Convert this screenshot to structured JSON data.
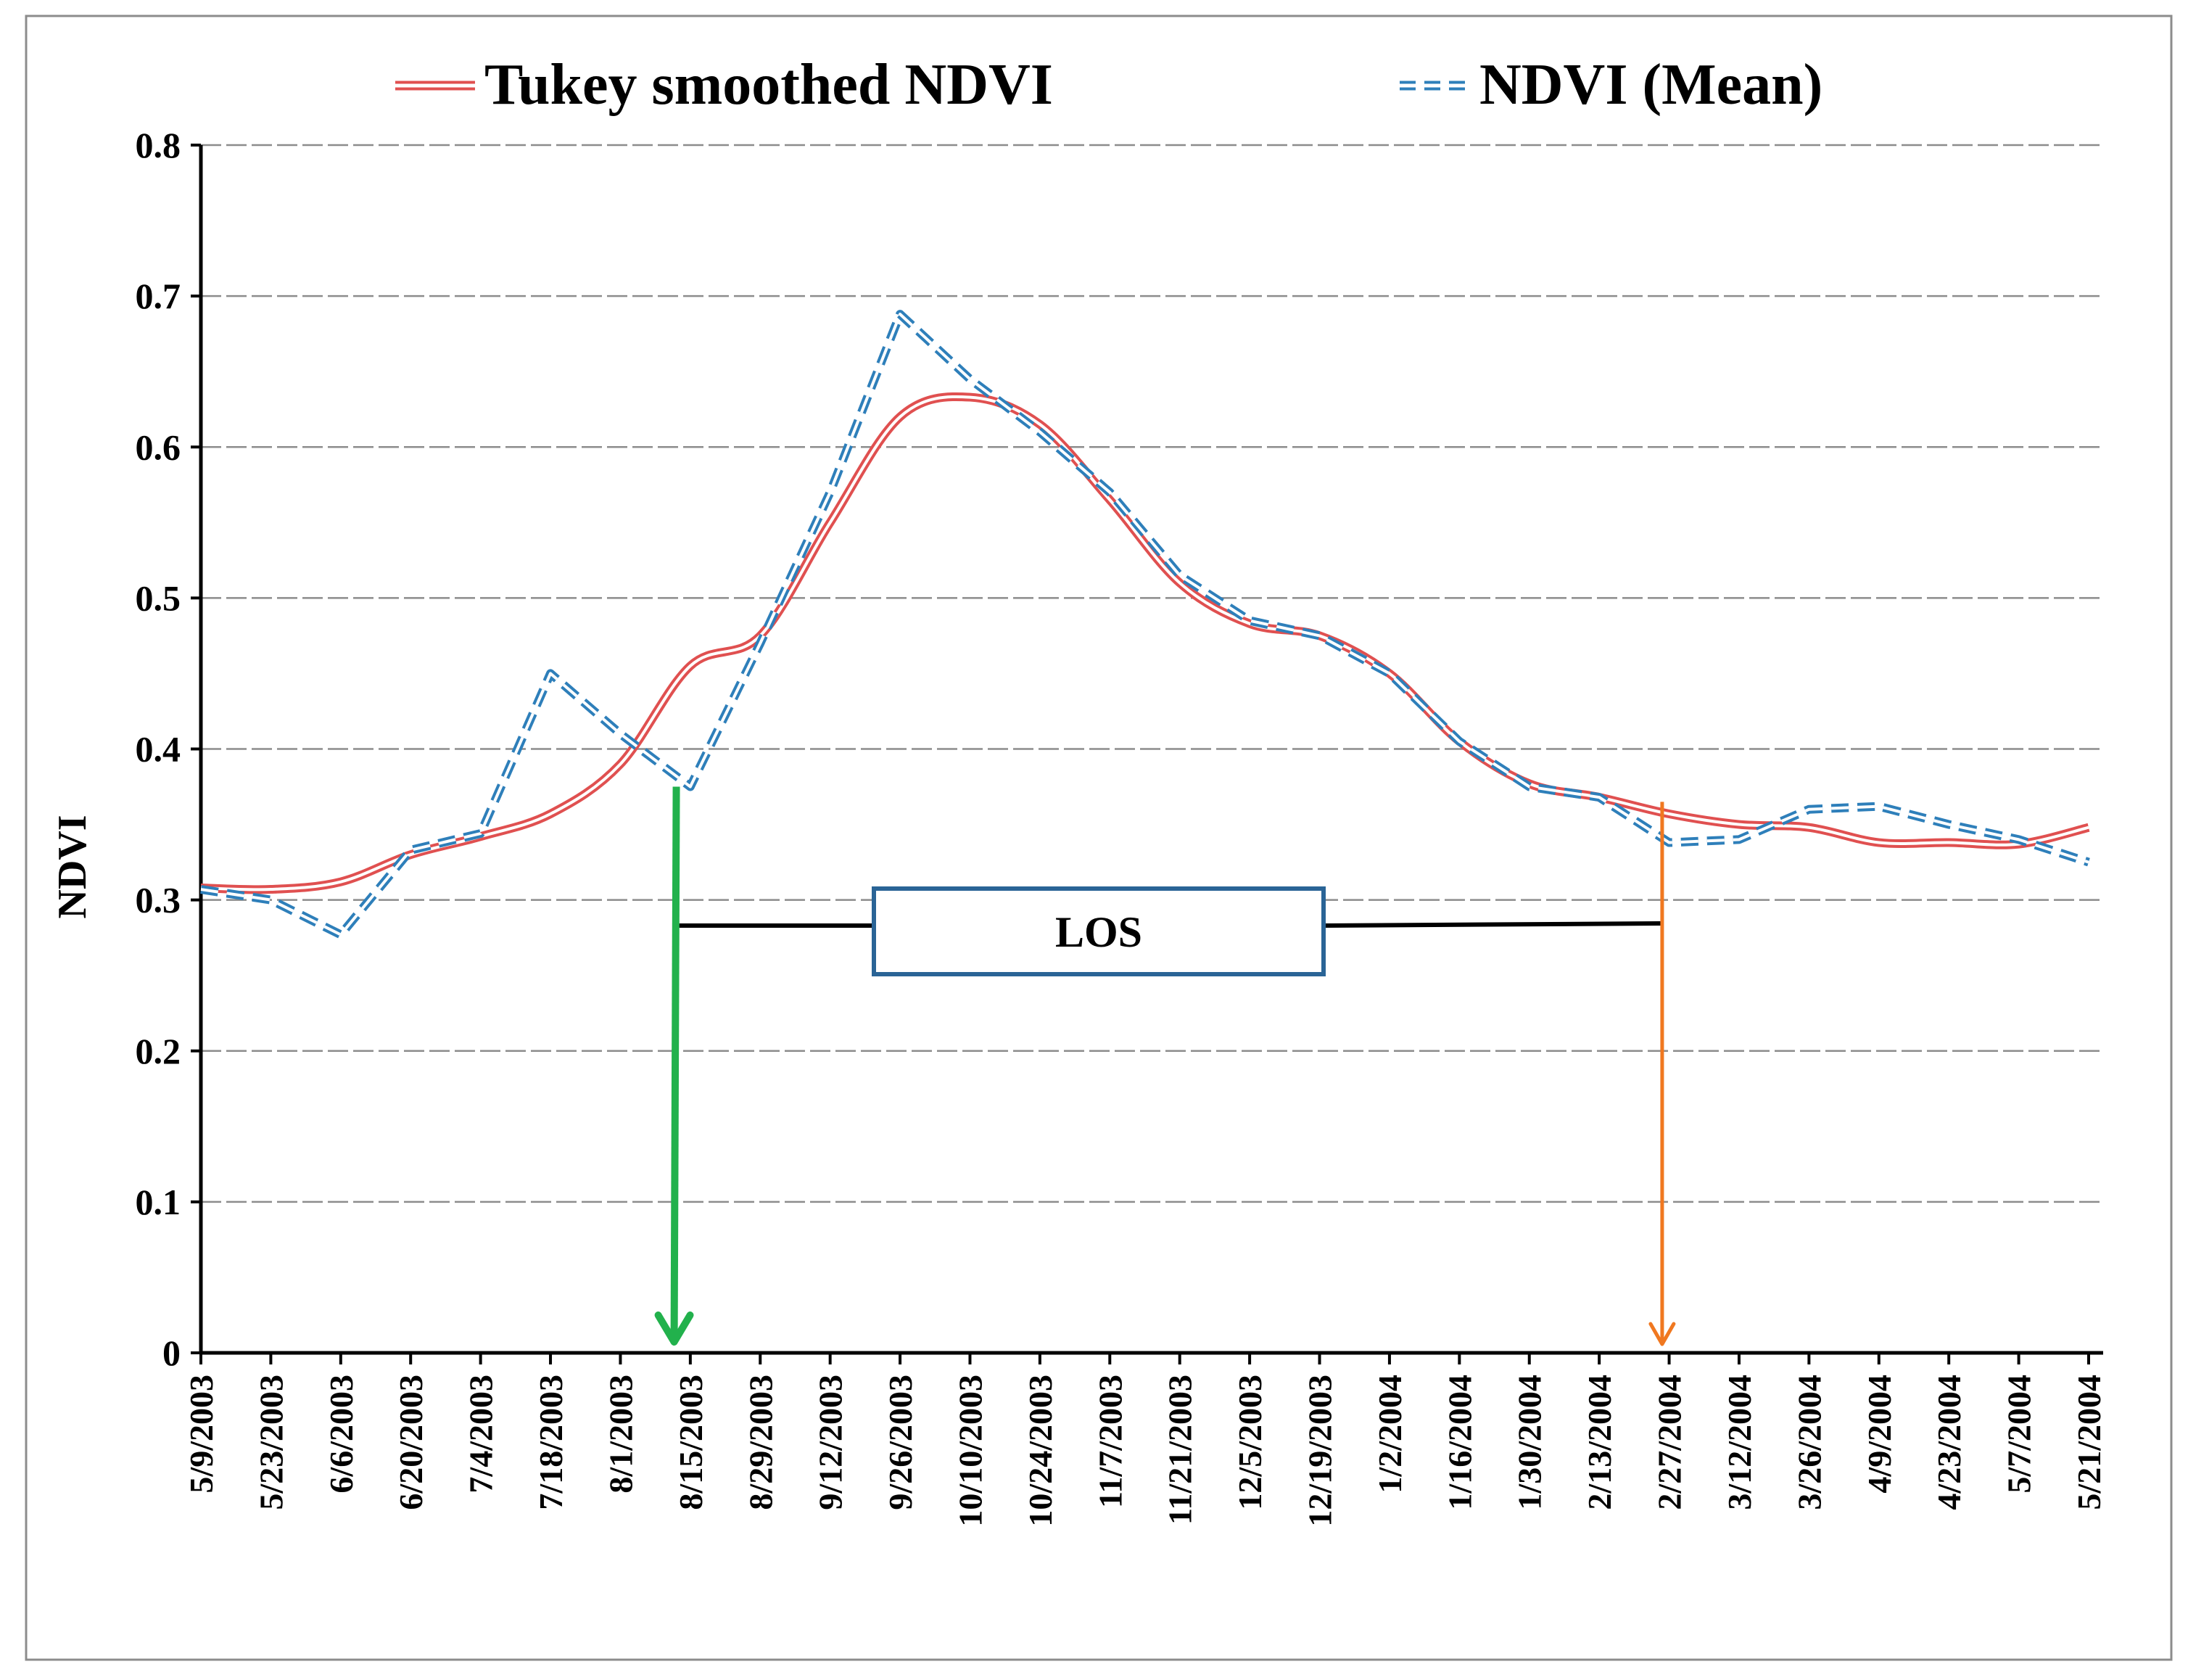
{
  "chart_data": {
    "type": "line",
    "title": "",
    "xlabel": "",
    "ylabel": "NDVI",
    "ylim": [
      0,
      0.8
    ],
    "yticks": [
      "0",
      "0.1",
      "0.2",
      "0.3",
      "0.4",
      "0.5",
      "0.6",
      "0.7",
      "0.8"
    ],
    "grid": true,
    "legend_position": "top",
    "categories": [
      "5/9/2003",
      "5/23/2003",
      "6/6/2003",
      "6/20/2003",
      "7/4/2003",
      "7/18/2003",
      "8/1/2003",
      "8/15/2003",
      "8/29/2003",
      "9/12/2003",
      "9/26/2003",
      "10/10/2003",
      "10/24/2003",
      "11/7/2003",
      "11/21/2003",
      "12/5/2003",
      "12/19/2003",
      "1/2/2004",
      "1/16/2004",
      "1/30/2004",
      "2/13/2004",
      "2/27/2004",
      "3/12/2004",
      "3/26/2004",
      "4/9/2004",
      "4/23/2004",
      "5/7/2004",
      "5/21/2004"
    ],
    "series": [
      {
        "name": "Tukey smoothed NDVI",
        "style": "double-line",
        "color": "#e05050",
        "values": [
          0.308,
          0.307,
          0.312,
          0.33,
          0.342,
          0.357,
          0.39,
          0.455,
          0.475,
          0.55,
          0.62,
          0.633,
          0.615,
          0.565,
          0.51,
          0.483,
          0.475,
          0.45,
          0.405,
          0.377,
          0.368,
          0.357,
          0.35,
          0.348,
          0.338,
          0.338,
          0.337,
          0.348
        ]
      },
      {
        "name": "NDVI (Mean)",
        "style": "dashed-double",
        "color": "#2e7fba",
        "values": [
          0.307,
          0.3,
          0.277,
          0.333,
          0.344,
          0.45,
          0.41,
          0.375,
          0.47,
          0.57,
          0.688,
          0.645,
          0.61,
          0.57,
          0.515,
          0.485,
          0.475,
          0.45,
          0.405,
          0.375,
          0.368,
          0.338,
          0.34,
          0.36,
          0.362,
          0.35,
          0.34,
          0.325
        ]
      }
    ],
    "annotations": {
      "los_label": "LOS",
      "start_marker": {
        "x_value": 6.8,
        "y_value": 0.375,
        "color": "#22b14c"
      },
      "end_marker": {
        "x_value": 20.9,
        "y_value": 0.365,
        "color": "#f07820"
      },
      "los_line_y": 0.283,
      "box_color": "#2a6496"
    }
  }
}
